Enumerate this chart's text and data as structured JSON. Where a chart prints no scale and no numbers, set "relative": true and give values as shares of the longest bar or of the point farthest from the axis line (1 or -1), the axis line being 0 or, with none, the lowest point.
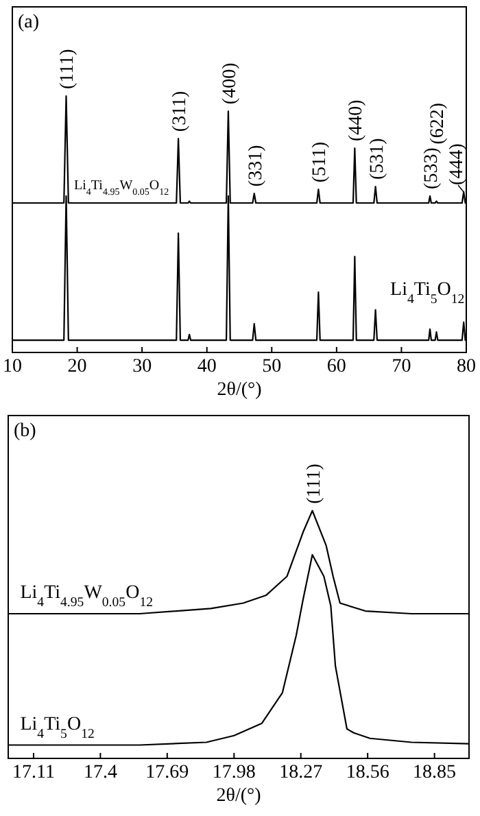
{
  "chart_data": [
    {
      "type": "line",
      "title": "(a)",
      "xlabel": "2θ/(°)",
      "relative": true,
      "xlim": [
        10,
        80
      ],
      "xticks": [
        10,
        20,
        30,
        40,
        50,
        60,
        70,
        80
      ],
      "tick_labels": "x",
      "x": [
        10,
        17.95,
        18.3,
        18.65,
        35.3,
        35.6,
        35.9,
        37.1,
        37.3,
        37.5,
        43.0,
        43.3,
        43.6,
        47.05,
        47.3,
        47.55,
        56.95,
        57.2,
        57.45,
        62.55,
        62.8,
        63.05,
        65.75,
        66.0,
        66.25,
        74.2,
        74.4,
        74.6,
        75.2,
        75.4,
        75.6,
        79.35,
        79.6,
        79.85,
        80
      ],
      "series": [
        {
          "name": "Li$_{4}$Ti$_{4.95}$W$_{0.05}$O$_{12}$",
          "color": "#000000",
          "values": [
            0.583,
            0.583,
            1.0,
            0.583,
            0.583,
            0.834,
            0.583,
            0.583,
            0.59,
            0.583,
            0.583,
            0.941,
            0.583,
            0.583,
            0.62,
            0.583,
            0.583,
            0.636,
            0.583,
            0.583,
            0.797,
            0.583,
            0.583,
            0.647,
            0.583,
            0.583,
            0.61,
            0.583,
            0.583,
            0.59,
            0.583,
            0.583,
            0.626,
            0.583,
            0.583
          ]
        },
        {
          "name": "Li$_{4}$Ti$_{5}$O$_{12}$",
          "color": "#000000",
          "values": [
            0.048,
            0.048,
            0.61,
            0.048,
            0.048,
            0.465,
            0.048,
            0.048,
            0.07,
            0.048,
            0.048,
            0.61,
            0.048,
            0.048,
            0.112,
            0.048,
            0.048,
            0.235,
            0.048,
            0.048,
            0.374,
            0.048,
            0.048,
            0.166,
            0.048,
            0.048,
            0.091,
            0.048,
            0.048,
            0.08,
            0.048,
            0.048,
            0.118,
            0.048,
            0.048
          ]
        }
      ],
      "annotations": [
        {
          "text": "(111)",
          "x": 18.3,
          "y": 1.0
        },
        {
          "text": "(311)",
          "x": 35.6,
          "y": 0.834
        },
        {
          "text": "(400)",
          "x": 43.3,
          "y": 0.941
        },
        {
          "text": "(331)",
          "x": 47.3,
          "y": 0.62
        },
        {
          "text": "(511)",
          "x": 57.2,
          "y": 0.636
        },
        {
          "text": "(440)",
          "x": 62.8,
          "y": 0.797
        },
        {
          "text": "(531)",
          "x": 66.0,
          "y": 0.647
        },
        {
          "text": "(533)",
          "x": 74.4,
          "y": 0.61
        },
        {
          "text": "(622)",
          "x": 75.4,
          "y": 0.59
        },
        {
          "text": "(444)",
          "x": 79.6,
          "y": 0.626
        }
      ]
    },
    {
      "type": "line",
      "title": "(b)",
      "xlabel": "2θ/(°)",
      "relative": true,
      "xlim": [
        17.0,
        19.0
      ],
      "xticks": [
        17.11,
        17.4,
        {
          "value": 17.69,
          "label": "17.69"
        },
        17.98,
        18.27,
        18.56,
        18.85
      ],
      "tick_labels": "x",
      "series": [
        {
          "name": "Li$_{4}$Ti$_{4.95}$W$_{0.05}$O$_{12}$",
          "color": "#000000",
          "x": [
            17.0,
            17.57,
            17.88,
            18.02,
            18.12,
            18.21,
            18.28,
            18.32,
            18.38,
            18.41,
            18.44,
            18.55,
            18.75,
            19.0
          ],
          "values": [
            0.584,
            0.584,
            0.605,
            0.627,
            0.659,
            0.735,
            0.914,
            1.0,
            0.859,
            0.735,
            0.627,
            0.595,
            0.584,
            0.584
          ]
        },
        {
          "name": "Li$_{4}$Ti$_{5}$O$_{12}$",
          "color": "#000000",
          "x": [
            17.0,
            17.57,
            17.86,
            17.98,
            18.1,
            18.19,
            18.25,
            18.28,
            18.32,
            18.37,
            18.4,
            18.42,
            18.47,
            18.5,
            18.57,
            18.75,
            19.0
          ],
          "values": [
            0.054,
            0.054,
            0.065,
            0.092,
            0.141,
            0.265,
            0.497,
            0.643,
            0.822,
            0.735,
            0.616,
            0.373,
            0.119,
            0.103,
            0.081,
            0.065,
            0.059
          ]
        }
      ],
      "annotations": [
        {
          "text": "(111)",
          "x": 18.32,
          "y": 1.0
        }
      ]
    }
  ]
}
